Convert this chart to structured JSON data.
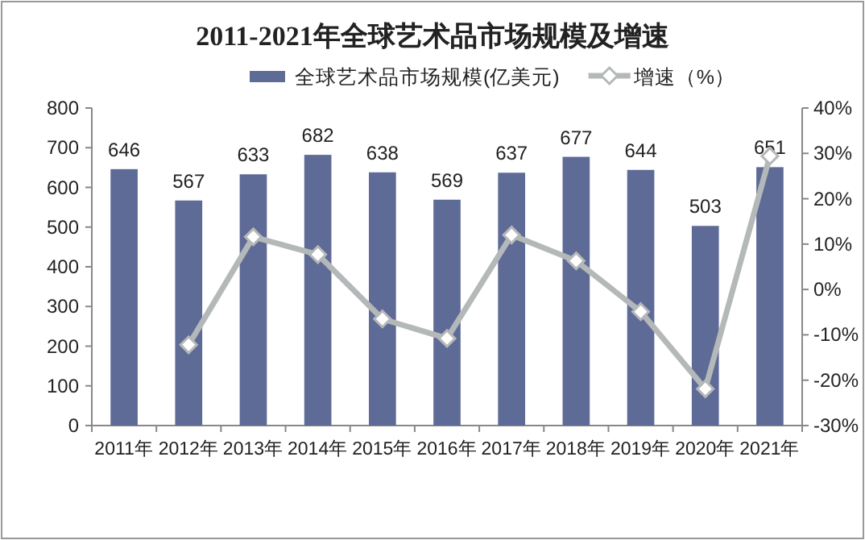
{
  "chart_data": {
    "type": "bar",
    "title": "2011-2021年全球艺术品市场规模及增速",
    "categories": [
      "2011年",
      "2012年",
      "2013年",
      "2014年",
      "2015年",
      "2016年",
      "2017年",
      "2018年",
      "2019年",
      "2020年",
      "2021年"
    ],
    "series": [
      {
        "name": "全球艺术品市场规模(亿美元)",
        "color": "#5f6b97",
        "values": [
          646,
          567,
          633,
          682,
          638,
          569,
          637,
          677,
          644,
          503,
          651
        ],
        "value_labels": [
          "646",
          "567",
          "633",
          "682",
          "638",
          "569",
          "637",
          "677",
          "644",
          "503",
          "651"
        ]
      },
      {
        "name": "增速（%）",
        "type": "line",
        "axis": "y2",
        "color": "#b4b8b8",
        "marker": "diamond",
        "values": [
          null,
          -12.2,
          11.6,
          7.7,
          -6.5,
          -10.8,
          12.0,
          6.3,
          -4.9,
          -21.9,
          29.4
        ]
      }
    ],
    "ylim": [
      0,
      800
    ],
    "yticks": [
      0,
      100,
      200,
      300,
      400,
      500,
      600,
      700,
      800
    ],
    "y2lim": [
      -30,
      40
    ],
    "y2ticks": [
      {
        "value": -30,
        "label": "-30%"
      },
      {
        "value": -20,
        "label": "-20%"
      },
      {
        "value": -10,
        "label": "-10%"
      },
      {
        "value": 0,
        "label": "0%"
      },
      {
        "value": 10,
        "label": "10%"
      },
      {
        "value": 20,
        "label": "20%"
      },
      {
        "value": 30,
        "label": "30%"
      },
      {
        "value": 40,
        "label": "40%"
      }
    ],
    "grid": false,
    "legend": "top"
  }
}
